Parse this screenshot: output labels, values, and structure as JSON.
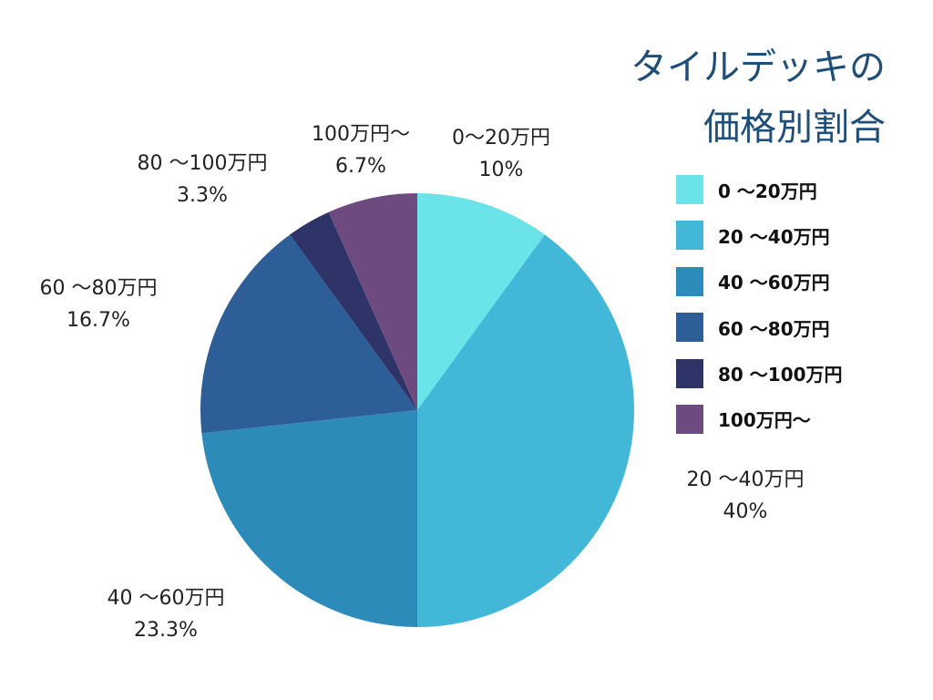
{
  "chart_data": {
    "type": "pie",
    "title_lines": [
      "タイルデッキの",
      "価格別割合"
    ],
    "legend_position": "right",
    "slices": [
      {
        "label": "0〜20万円",
        "legend_label": "0 〜20万円",
        "callout_label": "0〜20万円",
        "value": 10,
        "value_label": "10%",
        "color": "#6ae3e9"
      },
      {
        "label": "20〜40万円",
        "legend_label": "20 〜40万円",
        "callout_label": "20 〜40万円",
        "value": 40,
        "value_label": "40%",
        "color": "#42b7d7"
      },
      {
        "label": "40〜60万円",
        "legend_label": "40 〜60万円",
        "callout_label": "40 〜60万円",
        "value": 23.3,
        "value_label": "23.3%",
        "color": "#2d8bba"
      },
      {
        "label": "60〜80万円",
        "legend_label": "60 〜80万円",
        "callout_label": "60 〜80万円",
        "value": 16.7,
        "value_label": "16.7%",
        "color": "#2d5e98"
      },
      {
        "label": "80〜100万円",
        "legend_label": "80 〜100万円",
        "callout_label": "80 〜100万円",
        "value": 3.3,
        "value_label": "3.3%",
        "color": "#2e3468"
      },
      {
        "label": "100万円〜",
        "legend_label": "100万円〜",
        "callout_label": "100万円〜",
        "value": 6.7,
        "value_label": "6.7%",
        "color": "#6d4b80"
      }
    ]
  }
}
